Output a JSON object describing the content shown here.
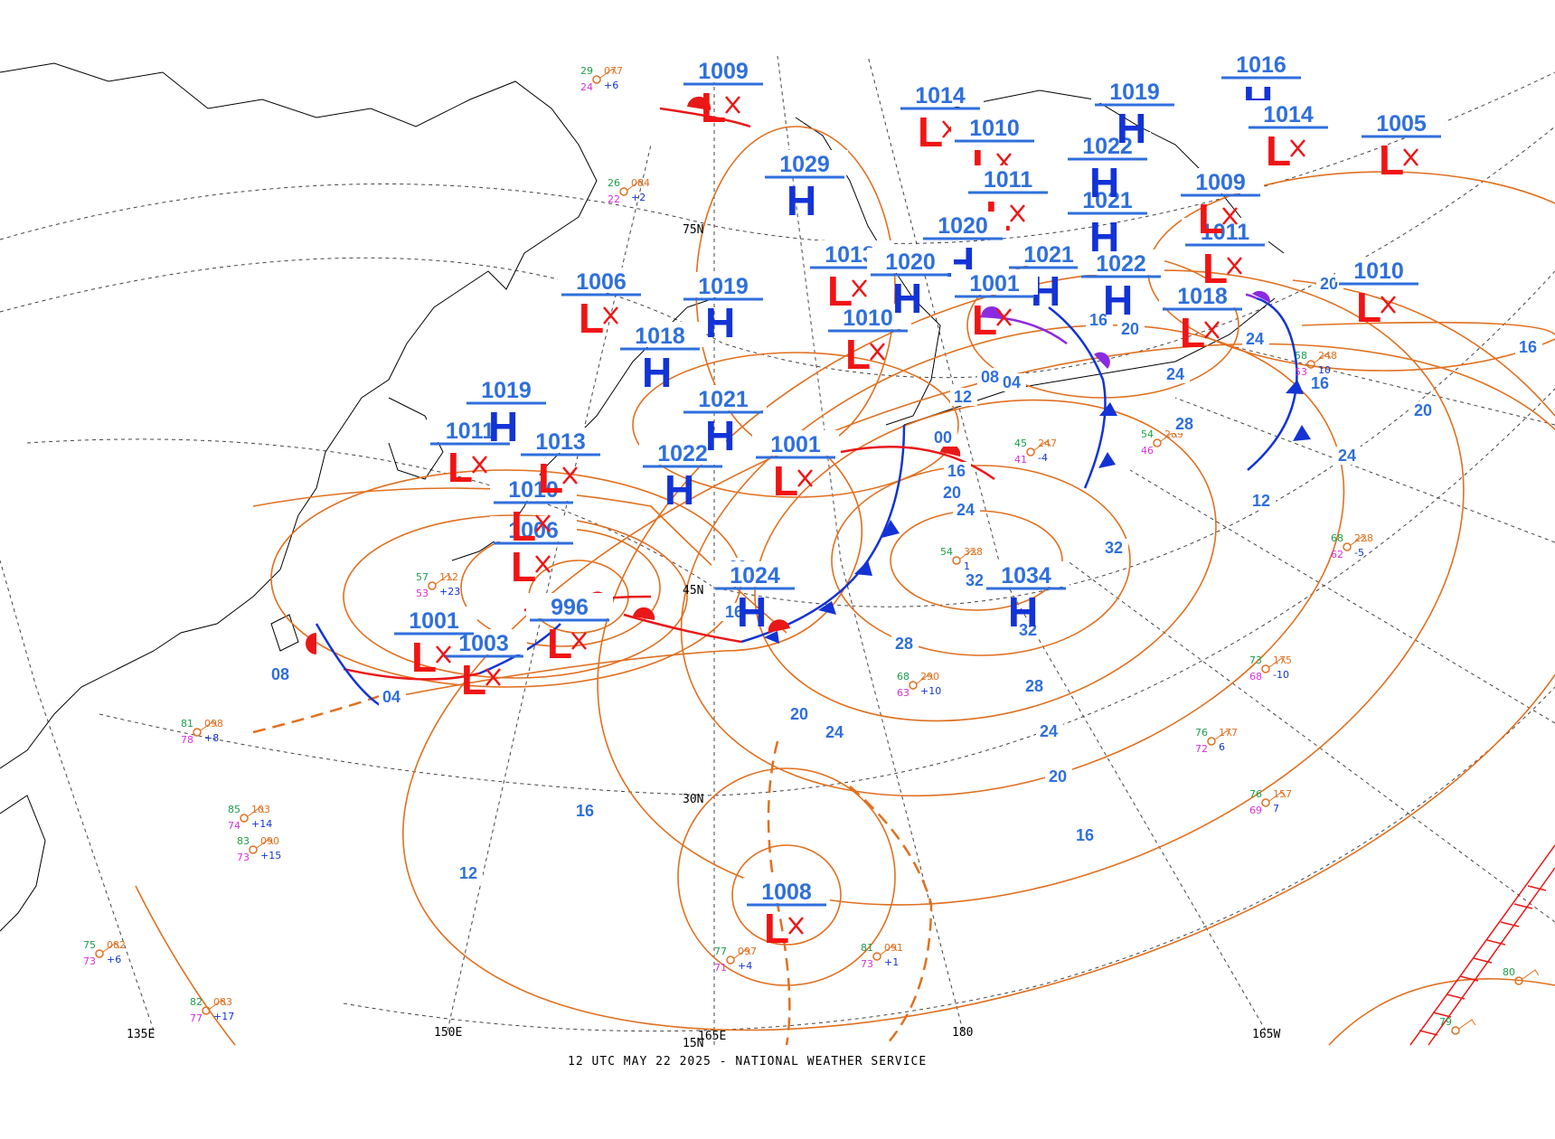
{
  "caption": "12 UTC MAY 22 2025 - NATIONAL WEATHER SERVICE",
  "graticule": {
    "longitude_labels": [
      "135E",
      "150E",
      "165E",
      "180",
      "165W"
    ],
    "latitude_labels": [
      "15N",
      "30N",
      "45N",
      "75N"
    ]
  },
  "colors": {
    "isobar": "#e07020",
    "pressure_label": "#2f6fdc",
    "high_letter": "#1333d6",
    "low_letter": "#f01414",
    "cold_front": "#1333d6",
    "warm_front": "#e81818",
    "occluded_front": "#8a2be2",
    "coastline": "#000000",
    "graticule": "#444444"
  },
  "isobar_labels": [
    {
      "text": "12"
    },
    {
      "text": "16"
    },
    {
      "text": "20"
    },
    {
      "text": "24"
    },
    {
      "text": "28"
    },
    {
      "text": "32"
    },
    {
      "text": "32"
    },
    {
      "text": "32"
    },
    {
      "text": "28"
    },
    {
      "text": "24"
    },
    {
      "text": "20"
    },
    {
      "text": "16"
    },
    {
      "text": "12"
    },
    {
      "text": "16"
    },
    {
      "text": "20"
    },
    {
      "text": "24"
    },
    {
      "text": "28"
    },
    {
      "text": "24"
    },
    {
      "text": "20"
    },
    {
      "text": "16"
    },
    {
      "text": "12"
    },
    {
      "text": "08"
    },
    {
      "text": "04"
    },
    {
      "text": "00"
    },
    {
      "text": "16"
    },
    {
      "text": "20"
    },
    {
      "text": "24"
    },
    {
      "text": "16"
    },
    {
      "text": "20"
    },
    {
      "text": "24"
    },
    {
      "text": "16"
    },
    {
      "text": "20"
    },
    {
      "text": "08"
    },
    {
      "text": "04"
    }
  ],
  "pressure_centers": [
    {
      "kind": "H",
      "value": "1034"
    },
    {
      "kind": "H",
      "value": "1024"
    },
    {
      "kind": "L",
      "value": "1008"
    },
    {
      "kind": "L",
      "value": "996"
    },
    {
      "kind": "L",
      "value": "1003"
    },
    {
      "kind": "L",
      "value": "1001"
    },
    {
      "kind": "L",
      "value": "1006"
    },
    {
      "kind": "L",
      "value": "1010"
    },
    {
      "kind": "L",
      "value": "1011"
    },
    {
      "kind": "H",
      "value": "1019"
    },
    {
      "kind": "L",
      "value": "1013"
    },
    {
      "kind": "H",
      "value": "1022"
    },
    {
      "kind": "L",
      "value": "1001"
    },
    {
      "kind": "H",
      "value": "1021"
    },
    {
      "kind": "H",
      "value": "1018"
    },
    {
      "kind": "L",
      "value": "1006"
    },
    {
      "kind": "H",
      "value": "1019"
    },
    {
      "kind": "L",
      "value": "1010"
    },
    {
      "kind": "L",
      "value": "1013"
    },
    {
      "kind": "H",
      "value": "1029"
    },
    {
      "kind": "L",
      "value": "1009"
    },
    {
      "kind": "L",
      "value": "1014"
    },
    {
      "kind": "L",
      "value": "1010"
    },
    {
      "kind": "L",
      "value": "1011"
    },
    {
      "kind": "H",
      "value": "1020"
    },
    {
      "kind": "H",
      "value": "1021"
    },
    {
      "kind": "H",
      "value": "1022"
    },
    {
      "kind": "L",
      "value": "1001"
    },
    {
      "kind": "L",
      "value": "1018"
    },
    {
      "kind": "L",
      "value": "1011"
    },
    {
      "kind": "L",
      "value": "1009"
    },
    {
      "kind": "H",
      "value": "1021"
    },
    {
      "kind": "H",
      "value": "1022"
    },
    {
      "kind": "H",
      "value": "1019"
    },
    {
      "kind": "H",
      "value": "1016"
    },
    {
      "kind": "L",
      "value": "1014"
    },
    {
      "kind": "L",
      "value": "1005"
    },
    {
      "kind": "L",
      "value": "1010"
    },
    {
      "kind": "H",
      "value": "1020"
    }
  ],
  "station_plots": [
    {
      "temp": "29",
      "pres": "077",
      "dew": "24",
      "tend": "+6"
    },
    {
      "temp": "26",
      "pres": "084",
      "dew": "22",
      "tend": "+2"
    },
    {
      "temp": "57",
      "pres": "112",
      "dew": "53",
      "tend": "+23"
    },
    {
      "temp": "77",
      "pres": "097",
      "dew": "71",
      "tend": "+4"
    },
    {
      "temp": "81",
      "pres": "091",
      "dew": "73",
      "tend": "+1"
    },
    {
      "temp": "68",
      "pres": "290",
      "dew": "63",
      "tend": "+10"
    },
    {
      "temp": "73",
      "pres": "175",
      "dew": "68",
      "tend": "-10"
    },
    {
      "temp": "68",
      "pres": "228",
      "dew": "62",
      "tend": "-5"
    },
    {
      "temp": "58",
      "pres": "248",
      "dew": "53",
      "tend": "10"
    },
    {
      "temp": "54",
      "pres": "289",
      "dew": "46",
      "tend": ""
    },
    {
      "temp": "45",
      "pres": "247",
      "dew": "41",
      "tend": "-4"
    },
    {
      "temp": "85",
      "pres": "103",
      "dew": "74",
      "tend": "+14"
    },
    {
      "temp": "83",
      "pres": "090",
      "dew": "73",
      "tend": "+15"
    },
    {
      "temp": "75",
      "pres": "082",
      "dew": "73",
      "tend": "+6"
    },
    {
      "temp": "82",
      "pres": "083",
      "dew": "77",
      "tend": "+17"
    },
    {
      "temp": "81",
      "pres": "098",
      "dew": "78",
      "tend": "+8"
    },
    {
      "temp": "76",
      "pres": "177",
      "dew": "72",
      "tend": "6"
    },
    {
      "temp": "76",
      "pres": "157",
      "dew": "69",
      "tend": "7"
    },
    {
      "temp": "54",
      "pres": "328",
      "dew": "",
      "tend": "1"
    },
    {
      "temp": "79",
      "pres": "",
      "dew": "",
      "tend": ""
    },
    {
      "temp": "80",
      "pres": "",
      "dew": "",
      "tend": ""
    }
  ],
  "stationary_front_hatch": true,
  "legend": "none"
}
